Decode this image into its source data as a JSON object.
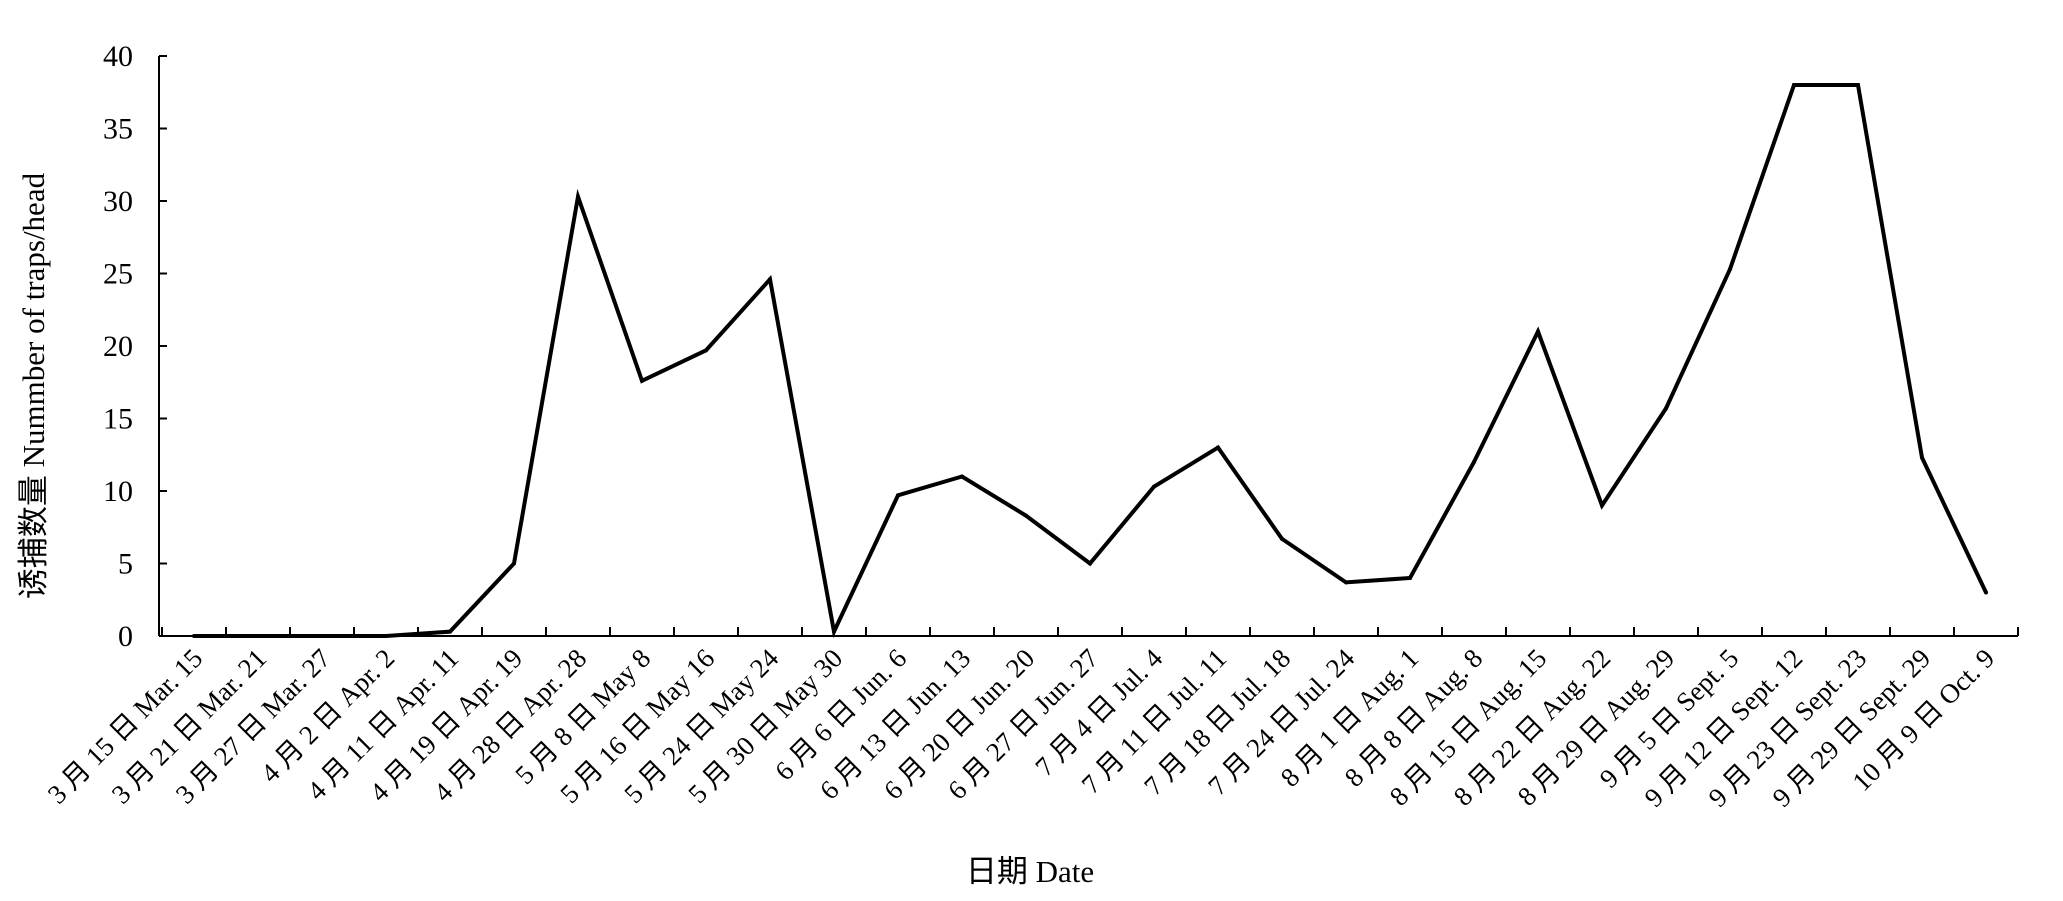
{
  "chart_data": {
    "type": "line",
    "title": "",
    "xlabel": "日期 Date",
    "ylabel": "诱捕数量 Nummber of traps/head",
    "ylim": [
      0,
      40
    ],
    "yticks": [
      0,
      5,
      10,
      15,
      20,
      25,
      30,
      35,
      40
    ],
    "grid": false,
    "legend": "none",
    "line_color": "#000000",
    "categories": [
      "3 月 15 日 Mar. 15",
      "3 月 21 日 Mar. 21",
      "3 月 27 日 Mar. 27",
      "4 月 2 日 Apr. 2",
      "4 月 11 日 Apr. 11",
      "4 月 19 日 Apr. 19",
      "4 月 28 日 Apr. 28",
      "5 月 8 日 May 8",
      "5 月 16 日 May 16",
      "5 月 24 日 May 24",
      "5 月 30 日 May 30",
      "6 月 6 日 Jun. 6",
      "6 月 13 日 Jun. 13",
      "6 月 20 日 Jun. 20",
      "6 月 27 日 Jun. 27",
      "7 月 4 日 Jul. 4",
      "7 月 11 日 Jul. 11",
      "7 月 18 日 Jul. 18",
      "7 月 24 日 Jul. 24",
      "8 月 1 日 Aug. 1",
      "8 月 8 日 Aug. 8",
      "8 月 15 日 Aug. 15",
      "8 月 22 日 Aug. 22",
      "8 月 29 日 Aug. 29",
      "9 月 5 日 Sept. 5",
      "9 月 12 日 Sept. 12",
      "9 月 23 日 Sept. 23",
      "9 月 29 日 Sept. 29",
      "10 月 9 日 Oct. 9"
    ],
    "series": [
      {
        "values": [
          0,
          0,
          0,
          0,
          0.3,
          5.0,
          30.3,
          17.6,
          19.7,
          24.6,
          0.3,
          9.7,
          11.0,
          8.3,
          5.0,
          10.3,
          13.0,
          6.7,
          3.7,
          4.0,
          12.0,
          21.0,
          9.0,
          15.7,
          25.3,
          38.0,
          38.0,
          12.3,
          3.0
        ]
      }
    ]
  }
}
